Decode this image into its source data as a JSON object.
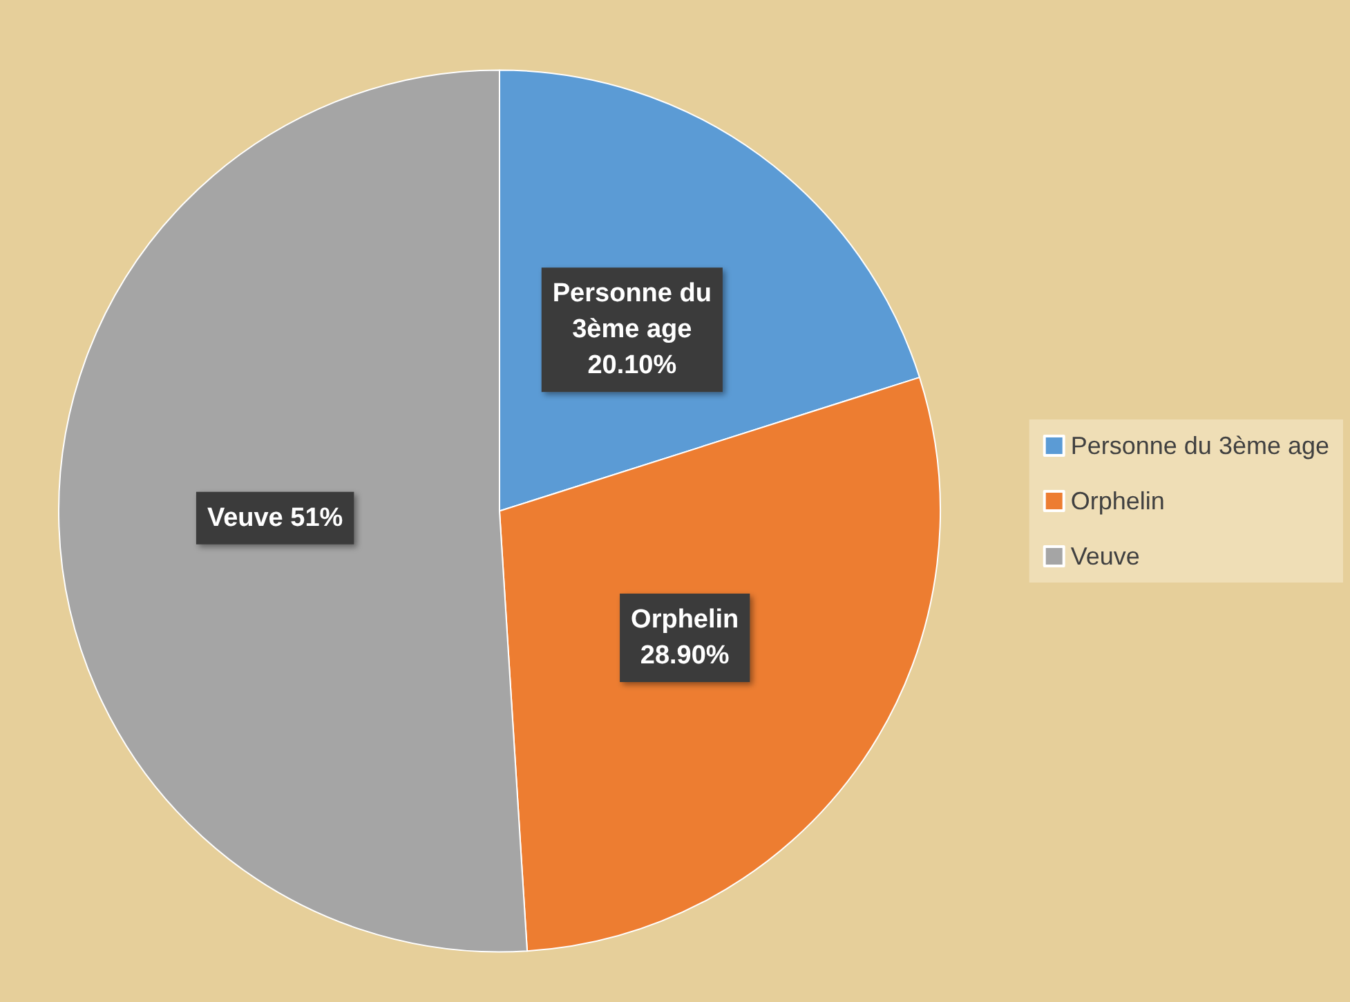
{
  "chart_data": {
    "type": "pie",
    "categories": [
      "Personne du 3ème age",
      "Orphelin",
      "Veuve"
    ],
    "values": [
      20.1,
      28.9,
      51
    ],
    "value_labels": [
      "Personne du\n3ème age\n20.10%",
      "Orphelin\n28.90%",
      "Veuve 51%"
    ],
    "colors": [
      "#5b9bd5",
      "#ed7d31",
      "#a5a5a5"
    ],
    "legend": "right"
  }
}
